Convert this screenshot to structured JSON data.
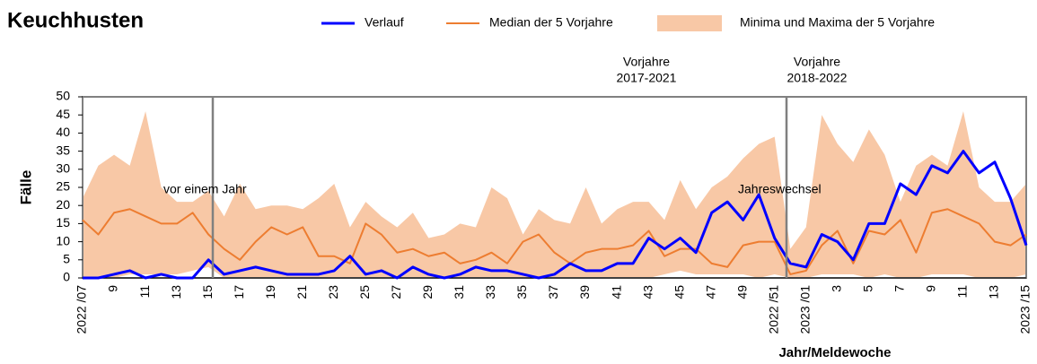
{
  "chart_data": {
    "type": "line",
    "title": "Keuchhusten",
    "x_label": "Jahr/Meldewoche",
    "y_label": "Fälle",
    "annotations": [
      "vor einem Jahr",
      "Jahreswechsel",
      "Vorjahre",
      "2017-2021",
      "Vorjahre",
      "2018-2022"
    ],
    "categories": [
      "2022 /07",
      null,
      "9",
      null,
      "11",
      null,
      "13",
      null,
      "15",
      null,
      "17",
      null,
      "19",
      null,
      "21",
      null,
      "23",
      null,
      "25",
      null,
      "27",
      null,
      "29",
      null,
      "31",
      null,
      "33",
      null,
      "35",
      null,
      "37",
      null,
      "39",
      null,
      "41",
      null,
      "43",
      null,
      "45",
      null,
      "47",
      null,
      "49",
      null,
      "2022 /51",
      null,
      "2023 /01",
      null,
      "3",
      null,
      "5",
      null,
      "7",
      null,
      "9",
      null,
      "11",
      null,
      "13",
      null,
      "2023 /15"
    ],
    "band": {
      "name": "Minima und Maxima der 5 Vorjahre",
      "color": "#f8c8a6",
      "max": [
        22,
        31,
        34,
        31,
        46,
        25,
        21,
        21,
        24,
        17,
        26,
        19,
        20,
        20,
        19,
        22,
        26,
        14,
        21,
        17,
        14,
        18,
        11,
        12,
        15,
        14,
        25,
        22,
        12,
        19,
        16,
        15,
        25,
        15,
        19,
        21,
        21,
        16,
        27,
        19,
        25,
        28,
        33,
        37,
        39,
        8,
        14,
        45,
        37,
        32,
        41,
        34,
        21,
        31,
        34,
        31,
        46,
        25,
        21,
        21,
        26
      ],
      "min": [
        0,
        0,
        0,
        1,
        1,
        1,
        1,
        2,
        3,
        0,
        0,
        0,
        0,
        0,
        0,
        0,
        0,
        0,
        0,
        0,
        0,
        0,
        0,
        0,
        0,
        0,
        0,
        0,
        0,
        0,
        0,
        0,
        0,
        0,
        0,
        0,
        0,
        1,
        2,
        1,
        1,
        1,
        1,
        0,
        1,
        0,
        0,
        1,
        1,
        1,
        0,
        1,
        0,
        0,
        1,
        1,
        1,
        0,
        0,
        0,
        1
      ]
    },
    "series": [
      {
        "name": "Verlauf",
        "color": "#0000ff",
        "width": 3,
        "values": [
          0,
          0,
          1,
          2,
          0,
          1,
          0,
          0,
          5,
          1,
          2,
          3,
          2,
          1,
          1,
          1,
          2,
          6,
          1,
          2,
          0,
          3,
          1,
          0,
          1,
          3,
          2,
          2,
          1,
          0,
          1,
          4,
          2,
          2,
          4,
          4,
          11,
          8,
          11,
          7,
          18,
          21,
          16,
          23,
          11,
          4,
          3,
          12,
          10,
          5,
          15,
          15,
          26,
          23,
          31,
          29,
          35,
          29,
          32,
          22,
          9
        ]
      },
      {
        "name": "Median der 5 Vorjahre",
        "color": "#ed7d31",
        "width": 2,
        "values": [
          16,
          12,
          18,
          19,
          17,
          15,
          15,
          18,
          12,
          8,
          5,
          10,
          14,
          12,
          14,
          6,
          6,
          4,
          15,
          12,
          7,
          8,
          6,
          7,
          4,
          5,
          7,
          4,
          10,
          12,
          7,
          4,
          7,
          8,
          8,
          9,
          13,
          6,
          8,
          8,
          4,
          3,
          9,
          10,
          10,
          1,
          2,
          9,
          13,
          4,
          13,
          12,
          16,
          7,
          18,
          19,
          17,
          15,
          10,
          9,
          12
        ]
      }
    ],
    "ylim": [
      0,
      50
    ],
    "yticks": [
      0,
      5,
      10,
      15,
      20,
      25,
      30,
      35,
      40,
      45,
      50
    ],
    "grid": false
  }
}
